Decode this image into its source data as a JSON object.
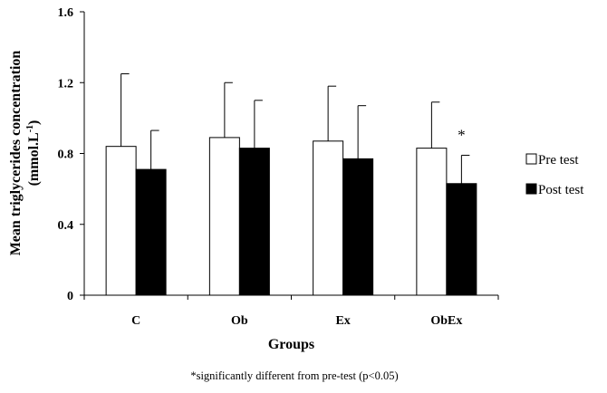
{
  "chart_data": {
    "type": "bar",
    "title": "",
    "xlabel": "Groups",
    "ylabel": "Mean triglycerides concentration",
    "ylabel_unit": "(mmol.L",
    "ylabel_unit_sup": "-1",
    "ylabel_unit_close": ")",
    "ylim": [
      0,
      1.6
    ],
    "yticks": [
      "0",
      "0.4",
      "0.8",
      "1.2",
      "1.6"
    ],
    "categories": [
      "C",
      "Ob",
      "Ex",
      "ObEx"
    ],
    "series": [
      {
        "name": "Pre test",
        "values": [
          0.84,
          0.89,
          0.87,
          0.83
        ],
        "error": [
          0.41,
          0.31,
          0.31,
          0.26
        ],
        "color": "#ffffff"
      },
      {
        "name": "Post test",
        "values": [
          0.71,
          0.83,
          0.77,
          0.63
        ],
        "error": [
          0.22,
          0.27,
          0.3,
          0.16
        ],
        "color": "#000000"
      }
    ],
    "annotations": [
      {
        "text": "*",
        "category": "ObEx",
        "series": "Post test"
      }
    ],
    "legend_position": "right",
    "grid": false,
    "footnote": "*significantly different from pre-test (p<0.05)"
  }
}
